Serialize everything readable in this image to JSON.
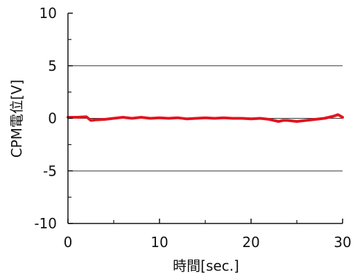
{
  "chart_data": {
    "type": "line",
    "xlabel": "時間[sec.]",
    "ylabel": "CPM電位[V]",
    "xlim": [
      0,
      30
    ],
    "ylim": [
      -10,
      10
    ],
    "x_ticks": [
      0,
      10,
      20,
      30
    ],
    "x_minor_ticks": [
      5,
      15,
      25
    ],
    "y_ticks": [
      -10,
      -5,
      0,
      5,
      10
    ],
    "y_minor_ticks": [
      -7.5,
      -2.5,
      2.5,
      7.5
    ],
    "gridlines_y": [
      -5,
      0,
      5
    ],
    "legend": "none",
    "series": [
      {
        "color": "#e3141f",
        "x": [
          0,
          1,
          2,
          2.5,
          3,
          4,
          5,
          6,
          7,
          8,
          9,
          10,
          11,
          12,
          13,
          14,
          15,
          16,
          17,
          18,
          19,
          20,
          21,
          22,
          22.5,
          23,
          23.5,
          24,
          25,
          26,
          27,
          28,
          29,
          29.5,
          30
        ],
        "y": [
          0.1,
          0.1,
          0.15,
          -0.2,
          -0.15,
          -0.1,
          0.0,
          0.1,
          0.0,
          0.1,
          0.0,
          0.05,
          0.0,
          0.05,
          -0.05,
          0.0,
          0.05,
          0.0,
          0.05,
          0.0,
          0.0,
          -0.05,
          0.0,
          -0.1,
          -0.2,
          -0.3,
          -0.2,
          -0.2,
          -0.3,
          -0.2,
          -0.1,
          0.0,
          0.2,
          0.35,
          0.1
        ]
      }
    ]
  }
}
